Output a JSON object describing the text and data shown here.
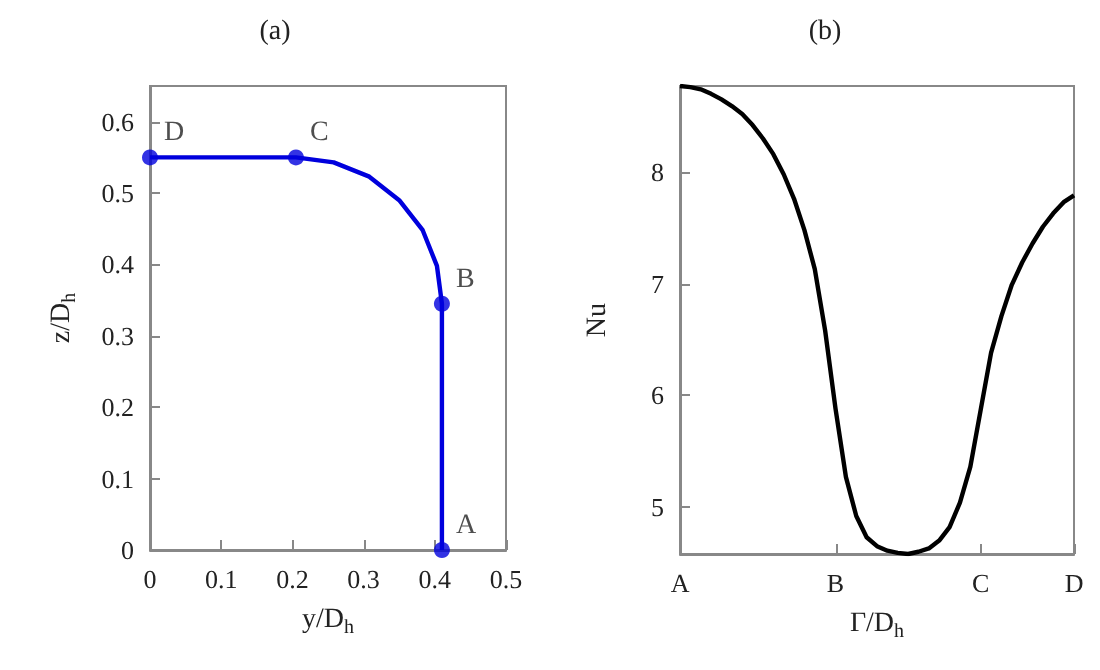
{
  "chart_data": [
    {
      "type": "line",
      "title": "(a)",
      "xlabel": "y/D$_{h}$",
      "ylabel": "z/D$_{h}$",
      "xlim": [
        0,
        0.5
      ],
      "xticks": [
        0,
        0.1,
        0.2,
        0.3,
        0.4,
        0.5
      ],
      "ylim": [
        0,
        0.65
      ],
      "yticks": [
        0,
        0.1,
        0.2,
        0.3,
        0.4,
        0.5,
        0.6
      ],
      "series": [
        {
          "type": "line",
          "color": "#0000dd",
          "marker": "none",
          "line_style": "solid",
          "x": [
            0.41,
            0.41,
            0.403,
            0.383,
            0.35,
            0.308,
            0.258,
            0.205,
            0
          ],
          "values": [
            0,
            0.345,
            0.398,
            0.448,
            0.49,
            0.523,
            0.543,
            0.55,
            0.55
          ]
        },
        {
          "type": "scatter",
          "color": "#0000dd",
          "marker": "circle",
          "x": [
            0.41,
            0.41,
            0.205,
            0
          ],
          "values": [
            0,
            0.345,
            0.55,
            0.55
          ]
        }
      ],
      "annotations": [
        {
          "text": "A",
          "x": 0.41,
          "y": 0
        },
        {
          "text": "B",
          "x": 0.41,
          "y": 0.345
        },
        {
          "text": "C",
          "x": 0.205,
          "y": 0.55
        },
        {
          "text": "D",
          "x": 0,
          "y": 0.55
        }
      ]
    },
    {
      "type": "line",
      "title": "(b)",
      "xlabel": "Γ/D$_{h}$",
      "ylabel": "Nu",
      "ylim": [
        4.58,
        8.77
      ],
      "yticks": [
        5,
        6,
        7,
        8
      ],
      "categories": [
        "A",
        null,
        null,
        null,
        null,
        null,
        null,
        null,
        null,
        null,
        null,
        null,
        null,
        null,
        null,
        "B",
        null,
        null,
        null,
        null,
        null,
        null,
        null,
        null,
        null,
        null,
        null,
        null,
        null,
        "C",
        null,
        null,
        null,
        null,
        null,
        null,
        null,
        null,
        "D"
      ],
      "series": [
        {
          "type": "line",
          "color": "#000000",
          "marker": "none",
          "line_style": "solid",
          "values": [
            8.77,
            8.76,
            8.74,
            8.7,
            8.65,
            8.59,
            8.52,
            8.42,
            8.3,
            8.16,
            7.98,
            7.76,
            7.48,
            7.13,
            6.58,
            5.88,
            5.27,
            4.92,
            4.73,
            4.65,
            4.61,
            4.59,
            4.58,
            4.6,
            4.63,
            4.7,
            4.82,
            5.04,
            5.36,
            5.87,
            6.38,
            6.71,
            6.99,
            7.19,
            7.36,
            7.51,
            7.63,
            7.73,
            7.79
          ]
        }
      ]
    }
  ]
}
